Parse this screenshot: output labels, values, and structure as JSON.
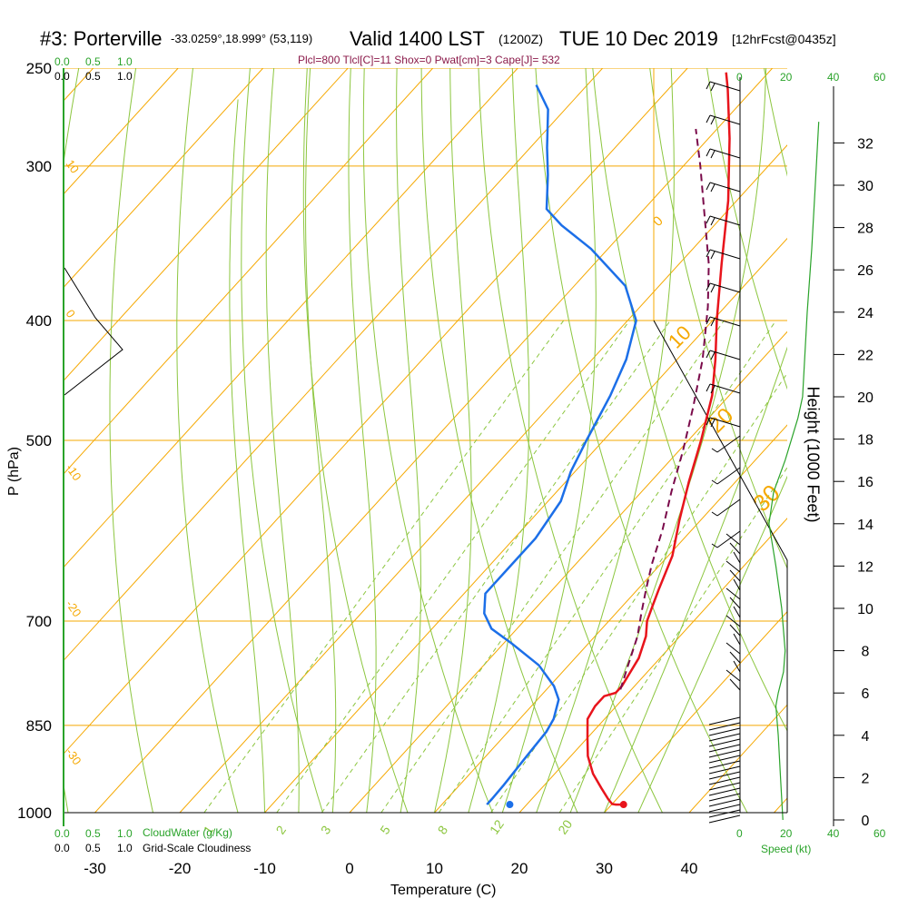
{
  "header": {
    "title_station": "#3: Porterville",
    "title_coords": "-33.0259°,18.999° (53,119)",
    "title_valid": "Valid 1400 LST",
    "title_z": "(1200Z)",
    "title_date": "TUE 10 Dec 2019",
    "title_fcst": "[12hrFcst@0435z]",
    "params": "Plcl=800 Tlcl[C]=11 Shox=0 Pwat[cm]=3 Cape[J]= 532"
  },
  "cloud_scale": {
    "top_green": [
      "0.0",
      "0.5",
      "1.0"
    ],
    "top_black": [
      "0.0",
      "0.5",
      "1.0"
    ],
    "bottom_green": [
      "0.0",
      "0.5",
      "1.0"
    ],
    "bottom_black": [
      "0.0",
      "0.5",
      "1.0"
    ],
    "cloudwater_label": "CloudWater (g/Kg)",
    "cloudiness_label": "Grid-Scale Cloudiness"
  },
  "speed_axis": {
    "top_ticks": [
      "0",
      "20",
      "40",
      "60"
    ],
    "bottom_ticks": [
      "0",
      "20",
      "40",
      "60"
    ],
    "label": "Speed (kt)"
  },
  "colors": {
    "isotherm": "#f5a800",
    "dry_adiabat": "#8cc63f",
    "mixing_ratio": "#8cc63f",
    "temperature": "#e8141c",
    "dewpoint": "#1c6fe8",
    "parcel": "#7a0a4a",
    "cloud_axis": "#2aa32a",
    "params_text": "#8b1a4a"
  },
  "chart_data": {
    "type": "line",
    "title": "#3: Porterville -33.0259°,18.999° (53,119) Valid 1400 LST (1200Z) TUE 10 Dec 2019 [12hrFcst@0435z]",
    "xlabel": "Temperature (C)",
    "ylabel": "P (hPa)",
    "y2label": "Height (1000 Feet)",
    "xlim": [
      -35,
      52
    ],
    "ylim": [
      1000,
      250
    ],
    "x_ticks": [
      -30,
      -20,
      -10,
      0,
      10,
      20,
      30,
      40
    ],
    "p_ticks": [
      250,
      300,
      400,
      500,
      700,
      850,
      1000
    ],
    "height_ticks": [
      0,
      2,
      4,
      6,
      8,
      10,
      12,
      14,
      16,
      18,
      20,
      22,
      24,
      26,
      28,
      30,
      32
    ],
    "isotherm_labels": [
      10,
      0,
      -10,
      -20,
      -30
    ],
    "isotherm_labels_right": [
      0,
      10,
      20,
      30
    ],
    "mixing_ratio_labels": [
      "1",
      "2",
      "3",
      "5",
      "8",
      "12",
      "20"
    ],
    "series": [
      {
        "name": "Temperature",
        "points": [
          [
            31,
            985
          ],
          [
            30.5,
            985
          ],
          [
            30,
            984
          ],
          [
            29,
            975
          ],
          [
            27,
            955
          ],
          [
            24.5,
            930
          ],
          [
            22,
            900
          ],
          [
            20,
            870
          ],
          [
            18,
            840
          ],
          [
            17.5,
            820
          ],
          [
            17.5,
            805
          ],
          [
            18.5,
            800
          ],
          [
            18.5,
            790
          ],
          [
            17.5,
            750
          ],
          [
            16,
            720
          ],
          [
            14.5,
            700
          ],
          [
            13.5,
            680
          ],
          [
            12.5,
            660
          ],
          [
            10.5,
            620
          ],
          [
            7.5,
            580
          ],
          [
            4.5,
            540
          ],
          [
            1.5,
            500
          ],
          [
            -2,
            460
          ],
          [
            -5.5,
            430
          ],
          [
            -9.5,
            400
          ],
          [
            -15,
            360
          ],
          [
            -21,
            320
          ],
          [
            -27.5,
            285
          ],
          [
            -33,
            260
          ],
          [
            -35,
            252
          ]
        ]
      },
      {
        "name": "Dewpoint",
        "points": [
          [
            15.3,
            985
          ],
          [
            15.3,
            975
          ],
          [
            15.2,
            950
          ],
          [
            14.8,
            900
          ],
          [
            14.5,
            860
          ],
          [
            14,
            840
          ],
          [
            12.5,
            810
          ],
          [
            10.5,
            790
          ],
          [
            6.5,
            760
          ],
          [
            1,
            730
          ],
          [
            -3,
            710
          ],
          [
            -5.5,
            690
          ],
          [
            -7.5,
            665
          ],
          [
            -7.5,
            640
          ],
          [
            -7.5,
            600
          ],
          [
            -8.5,
            560
          ],
          [
            -10.5,
            530
          ],
          [
            -12,
            500
          ],
          [
            -14,
            460
          ],
          [
            -16,
            430
          ],
          [
            -19,
            400
          ],
          [
            -24,
            375
          ],
          [
            -32,
            350
          ],
          [
            -38,
            335
          ],
          [
            -41.5,
            325
          ],
          [
            -45,
            305
          ],
          [
            -48,
            290
          ],
          [
            -52,
            270
          ],
          [
            -56,
            258
          ]
        ]
      },
      {
        "name": "Parcel",
        "points": [
          [
            18.7,
            795
          ],
          [
            17,
            760
          ],
          [
            15,
            720
          ],
          [
            13,
            690
          ],
          [
            11,
            660
          ],
          [
            9,
            630
          ],
          [
            6.5,
            590
          ],
          [
            3.5,
            550
          ],
          [
            0.5,
            510
          ],
          [
            -3,
            470
          ],
          [
            -7,
            430
          ],
          [
            -12,
            390
          ],
          [
            -16.5,
            360
          ],
          [
            -22,
            330
          ],
          [
            -28,
            300
          ],
          [
            -32.5,
            280
          ]
        ]
      },
      {
        "name": "Height",
        "points": [
          [
            18.5,
            0
          ],
          [
            17.5,
            2
          ],
          [
            16.5,
            4
          ],
          [
            15.5,
            5.4
          ],
          [
            16.5,
            6
          ],
          [
            18.8,
            7
          ],
          [
            19.5,
            8
          ],
          [
            18,
            10
          ],
          [
            15.5,
            12
          ],
          [
            12.5,
            14
          ],
          [
            14.5,
            15.5
          ],
          [
            19.5,
            17
          ],
          [
            25,
            19
          ],
          [
            27,
            20
          ],
          [
            29,
            24
          ],
          [
            31,
            27
          ],
          [
            32.5,
            30
          ],
          [
            34,
            33
          ]
        ]
      }
    ],
    "surface_temperature": 31.4,
    "surface_dewpoint": 18
  }
}
